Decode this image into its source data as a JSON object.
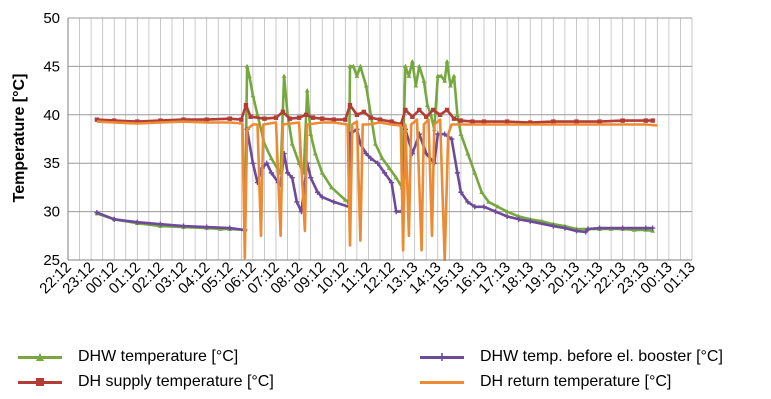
{
  "chart_data": {
    "type": "line",
    "title": "",
    "xlabel": "",
    "ylabel": "Temperature [°C]",
    "ylim": [
      25,
      50
    ],
    "yticks": [
      25,
      30,
      35,
      40,
      45,
      50
    ],
    "x_range": [
      0,
      27
    ],
    "x_tick_labels": [
      "22:12",
      "23:12",
      "00:12",
      "01:12",
      "02:12",
      "03:12",
      "04:12",
      "05:12",
      "06:12",
      "07:12",
      "08:12",
      "09:12",
      "10:12",
      "11:12",
      "12:12",
      "13:13",
      "14:13",
      "15:13",
      "16:13",
      "17:13",
      "18:13",
      "19:13",
      "20:13",
      "21:13",
      "22:13",
      "23:13",
      "00:13",
      "01:13"
    ],
    "grid": true,
    "legend_position": "bottom",
    "series": [
      {
        "name": "DHW temperature [°C]",
        "color": "#77a840",
        "marker": "triangle",
        "points": [
          [
            1.25,
            29.8
          ],
          [
            2,
            29.2
          ],
          [
            3,
            28.8
          ],
          [
            4,
            28.5
          ],
          [
            5,
            28.4
          ],
          [
            6,
            28.3
          ],
          [
            6.6,
            28.2
          ],
          [
            7,
            28.2
          ],
          [
            7.65,
            28.1
          ],
          [
            7.75,
            45.0
          ],
          [
            7.85,
            44.0
          ],
          [
            8,
            42.0
          ],
          [
            8.2,
            40.0
          ],
          [
            8.5,
            37.0
          ],
          [
            8.8,
            35.5
          ],
          [
            9.1,
            34.3
          ],
          [
            9.2,
            34.0
          ],
          [
            9.35,
            44.0
          ],
          [
            9.5,
            40.0
          ],
          [
            9.7,
            37.0
          ],
          [
            10,
            35.0
          ],
          [
            10.2,
            34.0
          ],
          [
            10.35,
            42.5
          ],
          [
            10.5,
            38.0
          ],
          [
            10.7,
            36.0
          ],
          [
            11,
            34.0
          ],
          [
            11.4,
            32.5
          ],
          [
            12,
            31.2
          ],
          [
            12.15,
            31.0
          ],
          [
            12.2,
            45.0
          ],
          [
            12.35,
            45.0
          ],
          [
            12.5,
            44.0
          ],
          [
            12.65,
            45.0
          ],
          [
            12.9,
            43.0
          ],
          [
            13.1,
            40.0
          ],
          [
            13.3,
            37.0
          ],
          [
            13.6,
            35.5
          ],
          [
            13.9,
            34.5
          ],
          [
            14.2,
            33.5
          ],
          [
            14.45,
            32.5
          ],
          [
            14.6,
            45.0
          ],
          [
            14.75,
            44.0
          ],
          [
            14.9,
            45.5
          ],
          [
            15.05,
            43.0
          ],
          [
            15.2,
            45.0
          ],
          [
            15.4,
            43.5
          ],
          [
            15.55,
            41.0
          ],
          [
            15.7,
            40.0
          ],
          [
            15.85,
            38.5
          ],
          [
            16,
            44.0
          ],
          [
            16.15,
            44.0
          ],
          [
            16.3,
            43.5
          ],
          [
            16.4,
            45.5
          ],
          [
            16.55,
            43.0
          ],
          [
            16.7,
            44.0
          ],
          [
            16.85,
            40.0
          ],
          [
            17,
            38.0
          ],
          [
            17.3,
            36.0
          ],
          [
            17.6,
            34.0
          ],
          [
            17.9,
            32.0
          ],
          [
            18.2,
            31.0
          ],
          [
            18.6,
            30.5
          ],
          [
            19,
            30.0
          ],
          [
            19.5,
            29.5
          ],
          [
            20,
            29.2
          ],
          [
            20.5,
            29.0
          ],
          [
            21,
            28.7
          ],
          [
            21.5,
            28.5
          ],
          [
            22,
            28.2
          ],
          [
            22.5,
            28.2
          ],
          [
            23,
            28.2
          ],
          [
            23.5,
            28.2
          ],
          [
            24,
            28.2
          ],
          [
            24.5,
            28.1
          ],
          [
            25,
            28.1
          ],
          [
            25.3,
            28.0
          ]
        ]
      },
      {
        "name": "DH supply temperature [°C]",
        "color": "#b23c36",
        "marker": "square",
        "points": [
          [
            1.25,
            39.5
          ],
          [
            2,
            39.4
          ],
          [
            3,
            39.3
          ],
          [
            4,
            39.4
          ],
          [
            5,
            39.5
          ],
          [
            6,
            39.5
          ],
          [
            7,
            39.6
          ],
          [
            7.5,
            39.5
          ],
          [
            7.7,
            41.0
          ],
          [
            7.9,
            39.8
          ],
          [
            8.5,
            39.6
          ],
          [
            9,
            39.7
          ],
          [
            9.3,
            40.3
          ],
          [
            9.6,
            39.6
          ],
          [
            10,
            39.7
          ],
          [
            10.3,
            40.0
          ],
          [
            10.6,
            39.7
          ],
          [
            11,
            39.6
          ],
          [
            11.5,
            39.5
          ],
          [
            12,
            39.5
          ],
          [
            12.2,
            41.0
          ],
          [
            12.5,
            40.0
          ],
          [
            12.8,
            40.3
          ],
          [
            13.1,
            39.7
          ],
          [
            13.5,
            39.5
          ],
          [
            14,
            39.3
          ],
          [
            14.4,
            39.0
          ],
          [
            14.6,
            40.5
          ],
          [
            14.9,
            39.8
          ],
          [
            15.2,
            40.5
          ],
          [
            15.5,
            39.8
          ],
          [
            15.8,
            40.5
          ],
          [
            16.1,
            40.0
          ],
          [
            16.4,
            40.5
          ],
          [
            16.7,
            39.6
          ],
          [
            17,
            39.4
          ],
          [
            17.5,
            39.3
          ],
          [
            18,
            39.3
          ],
          [
            19,
            39.3
          ],
          [
            20,
            39.2
          ],
          [
            21,
            39.3
          ],
          [
            22,
            39.3
          ],
          [
            23,
            39.3
          ],
          [
            24,
            39.4
          ],
          [
            25,
            39.4
          ],
          [
            25.3,
            39.4
          ]
        ]
      },
      {
        "name": "DHW temp. before el. booster [°C]",
        "color": "#6d4a9a",
        "marker": "star",
        "points": [
          [
            1.25,
            29.9
          ],
          [
            2,
            29.2
          ],
          [
            3,
            28.9
          ],
          [
            4,
            28.7
          ],
          [
            5,
            28.5
          ],
          [
            6,
            28.4
          ],
          [
            7,
            28.3
          ],
          [
            7.65,
            28.1
          ],
          [
            7.75,
            38.5
          ],
          [
            8,
            35.0
          ],
          [
            8.2,
            33.0
          ],
          [
            8.4,
            34.5
          ],
          [
            8.6,
            35.0
          ],
          [
            8.8,
            34.0
          ],
          [
            9.1,
            33.0
          ],
          [
            9.2,
            32.8
          ],
          [
            9.35,
            36.0
          ],
          [
            9.5,
            34.0
          ],
          [
            9.7,
            33.5
          ],
          [
            9.9,
            31.0
          ],
          [
            10.1,
            30.0
          ],
          [
            10.35,
            35.0
          ],
          [
            10.5,
            33.5
          ],
          [
            10.8,
            32.0
          ],
          [
            11,
            31.5
          ],
          [
            11.5,
            31.0
          ],
          [
            12.15,
            30.5
          ],
          [
            12.2,
            38.0
          ],
          [
            12.5,
            38.5
          ],
          [
            12.65,
            37.0
          ],
          [
            12.9,
            36.0
          ],
          [
            13.1,
            35.5
          ],
          [
            13.4,
            35.0
          ],
          [
            13.7,
            34.0
          ],
          [
            14,
            33.0
          ],
          [
            14.2,
            30.0
          ],
          [
            14.45,
            30.0
          ],
          [
            14.6,
            38.5
          ],
          [
            14.9,
            36.0
          ],
          [
            15.2,
            38.0
          ],
          [
            15.5,
            36.0
          ],
          [
            15.85,
            35.0
          ],
          [
            16,
            38.0
          ],
          [
            16.3,
            38.0
          ],
          [
            16.6,
            37.5
          ],
          [
            16.85,
            34.0
          ],
          [
            17,
            32.0
          ],
          [
            17.3,
            31.0
          ],
          [
            17.6,
            30.5
          ],
          [
            18,
            30.5
          ],
          [
            18.5,
            30.0
          ],
          [
            19,
            29.5
          ],
          [
            19.5,
            29.2
          ],
          [
            20,
            29.0
          ],
          [
            21,
            28.5
          ],
          [
            21.5,
            28.3
          ],
          [
            22,
            28.0
          ],
          [
            22.4,
            27.9
          ],
          [
            22.5,
            28.2
          ],
          [
            23,
            28.3
          ],
          [
            24,
            28.3
          ],
          [
            25,
            28.3
          ],
          [
            25.3,
            28.3
          ]
        ]
      },
      {
        "name": "DH return temperature [°C]",
        "color": "#ec8b33",
        "marker": "none",
        "points": [
          [
            1.25,
            39.3
          ],
          [
            2,
            39.2
          ],
          [
            3,
            39.1
          ],
          [
            4,
            39.2
          ],
          [
            5,
            39.3
          ],
          [
            6,
            39.2
          ],
          [
            7,
            39.2
          ],
          [
            7.55,
            39.1
          ],
          [
            7.65,
            25.2
          ],
          [
            7.75,
            38.5
          ],
          [
            8,
            39.0
          ],
          [
            8.2,
            39.0
          ],
          [
            8.35,
            27.5
          ],
          [
            8.45,
            39.0
          ],
          [
            9,
            39.2
          ],
          [
            9.2,
            27.5
          ],
          [
            9.3,
            39.0
          ],
          [
            10,
            39.2
          ],
          [
            10.25,
            28.0
          ],
          [
            10.35,
            39.0
          ],
          [
            11,
            39.2
          ],
          [
            11.5,
            39.2
          ],
          [
            12.1,
            39.0
          ],
          [
            12.2,
            26.5
          ],
          [
            12.3,
            39.0
          ],
          [
            12.5,
            39.3
          ],
          [
            12.65,
            27.0
          ],
          [
            12.75,
            39.0
          ],
          [
            13,
            39.0
          ],
          [
            13.5,
            39.2
          ],
          [
            14,
            39.0
          ],
          [
            14.4,
            38.9
          ],
          [
            14.5,
            26.0
          ],
          [
            14.6,
            39.0
          ],
          [
            14.75,
            27.5
          ],
          [
            14.85,
            39.0
          ],
          [
            15.1,
            39.5
          ],
          [
            15.3,
            26.0
          ],
          [
            15.4,
            39.0
          ],
          [
            15.6,
            39.5
          ],
          [
            15.75,
            27.5
          ],
          [
            15.85,
            39.0
          ],
          [
            16.1,
            39.5
          ],
          [
            16.3,
            25.0
          ],
          [
            16.45,
            38.0
          ],
          [
            16.6,
            39.0
          ],
          [
            17,
            39.0
          ],
          [
            18,
            39.0
          ],
          [
            19,
            39.0
          ],
          [
            20,
            39.0
          ],
          [
            21,
            39.0
          ],
          [
            22,
            39.0
          ],
          [
            23,
            39.0
          ],
          [
            24,
            39.0
          ],
          [
            25,
            39.0
          ],
          [
            25.5,
            38.9
          ]
        ]
      }
    ]
  },
  "legend": [
    {
      "label": "DHW temperature [°C]",
      "color": "#77a840",
      "marker": "triangle"
    },
    {
      "label": "DHW temp. before el. booster [°C]",
      "color": "#6d4a9a",
      "marker": "star"
    },
    {
      "label": "DH supply temperature [°C]",
      "color": "#b23c36",
      "marker": "square"
    },
    {
      "label": "DH return temperature [°C]",
      "color": "#ec8b33",
      "marker": "none"
    }
  ]
}
